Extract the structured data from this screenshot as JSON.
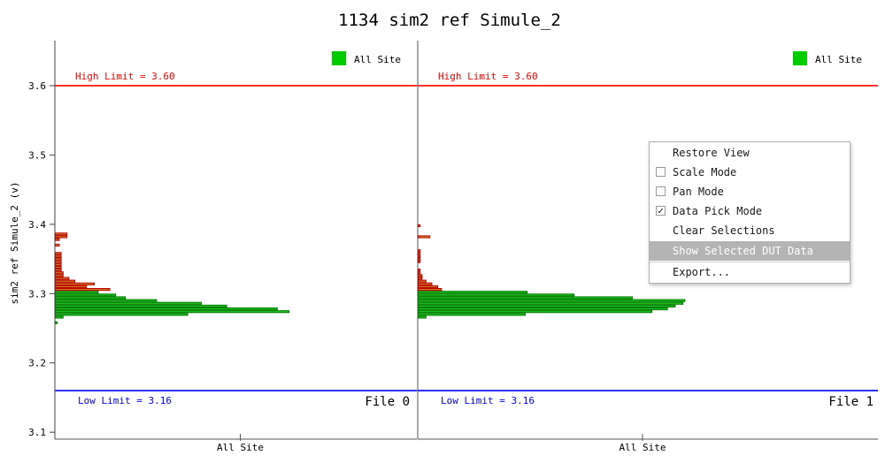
{
  "chart_data": {
    "type": "histogram",
    "title": "1134 sim2 ref Simule_2",
    "ylabel": "sim2 ref Simule_2 (v)",
    "ylim": [
      3.09,
      3.665
    ],
    "yticks": [
      3.1,
      3.2,
      3.3,
      3.4,
      3.5,
      3.6
    ],
    "ytick_labels": [
      "3.1",
      "3.2",
      "3.3",
      "3.4",
      "3.5",
      "3.6"
    ],
    "high_limit": {
      "value": 3.6,
      "label": "High Limit = 3.60",
      "color": "#ff0000"
    },
    "low_limit": {
      "value": 3.16,
      "label": "Low Limit = 3.16",
      "color": "#0000ff"
    },
    "legend": {
      "label": "All Site",
      "color": "#00cc00"
    },
    "bin_width": 0.004,
    "colors": {
      "in_limit": "#22c322",
      "in_edge": "#007a00",
      "selected": "#cd7f22",
      "selected_edge": "#bb0000"
    },
    "panels": [
      {
        "file_label": "File 0",
        "xlabel": "All Site",
        "bins": [
          {
            "y": 3.258,
            "count": 1
          },
          {
            "y": 3.266,
            "count": 4
          },
          {
            "y": 3.27,
            "count": 68
          },
          {
            "y": 3.274,
            "count": 120
          },
          {
            "y": 3.278,
            "count": 114
          },
          {
            "y": 3.282,
            "count": 88
          },
          {
            "y": 3.286,
            "count": 75
          },
          {
            "y": 3.29,
            "count": 52
          },
          {
            "y": 3.294,
            "count": 36
          },
          {
            "y": 3.298,
            "count": 31
          },
          {
            "y": 3.302,
            "count": 22
          },
          {
            "y": 3.306,
            "count": 28,
            "sel": true
          },
          {
            "y": 3.31,
            "count": 16,
            "sel": true
          },
          {
            "y": 3.314,
            "count": 20,
            "sel": true
          },
          {
            "y": 3.318,
            "count": 10,
            "sel": true
          },
          {
            "y": 3.322,
            "count": 7,
            "sel": true
          },
          {
            "y": 3.326,
            "count": 4,
            "sel": true
          },
          {
            "y": 3.33,
            "count": 4,
            "sel": true
          },
          {
            "y": 3.334,
            "count": 3,
            "sel": true
          },
          {
            "y": 3.338,
            "count": 3,
            "sel": true
          },
          {
            "y": 3.342,
            "count": 3,
            "sel": true
          },
          {
            "y": 3.346,
            "count": 3,
            "sel": true
          },
          {
            "y": 3.35,
            "count": 3,
            "sel": true
          },
          {
            "y": 3.354,
            "count": 3,
            "sel": true
          },
          {
            "y": 3.358,
            "count": 3,
            "sel": true
          },
          {
            "y": 3.37,
            "count": 2,
            "sel": true
          },
          {
            "y": 3.378,
            "count": 2,
            "sel": true
          },
          {
            "y": 3.382,
            "count": 6,
            "sel": true
          },
          {
            "y": 3.386,
            "count": 6,
            "sel": true
          }
        ]
      },
      {
        "file_label": "File 1",
        "xlabel": "All Site",
        "bins": [
          {
            "y": 3.266,
            "count": 4
          },
          {
            "y": 3.27,
            "count": 55
          },
          {
            "y": 3.274,
            "count": 120
          },
          {
            "y": 3.278,
            "count": 128
          },
          {
            "y": 3.282,
            "count": 132
          },
          {
            "y": 3.286,
            "count": 136
          },
          {
            "y": 3.29,
            "count": 137
          },
          {
            "y": 3.294,
            "count": 110
          },
          {
            "y": 3.298,
            "count": 80
          },
          {
            "y": 3.302,
            "count": 56
          },
          {
            "y": 3.306,
            "count": 12,
            "sel": true
          },
          {
            "y": 3.31,
            "count": 10,
            "sel": true
          },
          {
            "y": 3.314,
            "count": 7,
            "sel": true
          },
          {
            "y": 3.318,
            "count": 4,
            "sel": true
          },
          {
            "y": 3.322,
            "count": 2,
            "sel": true
          },
          {
            "y": 3.326,
            "count": 2,
            "sel": true
          },
          {
            "y": 3.33,
            "count": 1,
            "sel": true
          },
          {
            "y": 3.334,
            "count": 1,
            "sel": true
          },
          {
            "y": 3.346,
            "count": 1,
            "sel": true
          },
          {
            "y": 3.35,
            "count": 1,
            "sel": true
          },
          {
            "y": 3.354,
            "count": 1,
            "sel": true
          },
          {
            "y": 3.358,
            "count": 1,
            "sel": true
          },
          {
            "y": 3.362,
            "count": 1,
            "sel": true
          },
          {
            "y": 3.382,
            "count": 6,
            "sel": true
          },
          {
            "y": 3.398,
            "count": 1,
            "sel": true
          }
        ]
      }
    ]
  },
  "context_menu": {
    "items": [
      {
        "label": "Restore View",
        "checkbox": false
      },
      {
        "label": "Scale Mode",
        "checkbox": true,
        "checked": false
      },
      {
        "label": "Pan Mode",
        "checkbox": true,
        "checked": false
      },
      {
        "label": "Data Pick Mode",
        "checkbox": true,
        "checked": true
      },
      {
        "label": "Clear Selections",
        "checkbox": false
      },
      {
        "label": "Show Selected DUT Data",
        "checkbox": false,
        "highlighted": true
      },
      {
        "label": "Export...",
        "checkbox": false
      }
    ],
    "check_mark": "✓"
  }
}
